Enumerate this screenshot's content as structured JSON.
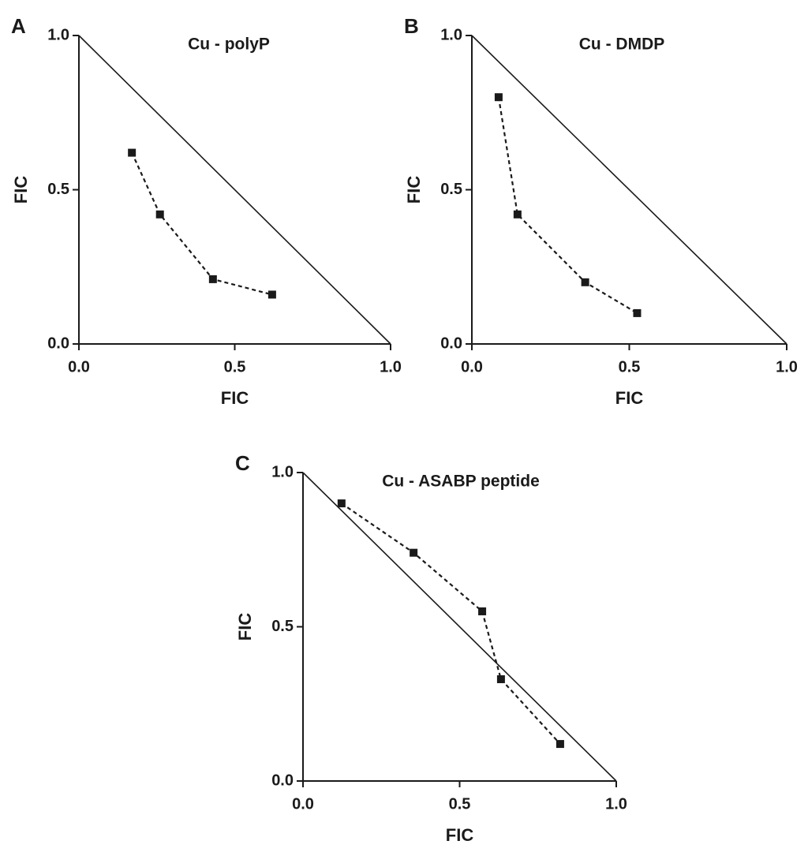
{
  "chart_data": [
    {
      "type": "line",
      "panel": "A",
      "title": "Cu - polyP",
      "x_label": "FIC",
      "y_label": "FIC",
      "x": [
        0.17,
        0.26,
        0.43,
        0.62
      ],
      "values": [
        0.62,
        0.42,
        0.21,
        0.16
      ],
      "color": "#1a1a1a",
      "xlim": [
        0,
        1
      ],
      "ylim": [
        0,
        1
      ],
      "xticks": [
        {
          "value": 0,
          "label": "0.0"
        },
        0.5,
        {
          "value": 1,
          "label": "1.0"
        }
      ],
      "yticks": [
        {
          "value": 0,
          "label": "0.0"
        },
        0.5,
        {
          "value": 1,
          "label": "1.0"
        }
      ]
    },
    {
      "type": "line",
      "panel": "B",
      "title": "Cu - DMDP",
      "x_label": "FIC",
      "y_label": "FIC",
      "x": [
        0.085,
        0.145,
        0.36,
        0.525
      ],
      "values": [
        0.8,
        0.42,
        0.2,
        0.1
      ],
      "color": "#1a1a1a",
      "xlim": [
        0,
        1
      ],
      "ylim": [
        0,
        1
      ],
      "xticks": [
        {
          "value": 0,
          "label": "0.0"
        },
        0.5,
        {
          "value": 1,
          "label": "1.0"
        }
      ],
      "yticks": [
        {
          "value": 0,
          "label": "0.0"
        },
        0.5,
        {
          "value": 1,
          "label": "1.0"
        }
      ]
    },
    {
      "type": "line",
      "panel": "C",
      "title": "Cu - ASABP peptide",
      "x_label": "FIC",
      "y_label": "FIC",
      "x": [
        0.123,
        0.353,
        0.572,
        0.632,
        0.821
      ],
      "values": [
        0.9,
        0.74,
        0.55,
        0.33,
        0.12
      ],
      "color": "#1a1a1a",
      "xlim": [
        0,
        1
      ],
      "ylim": [
        0,
        1
      ],
      "xticks": [
        {
          "value": 0,
          "label": "0.0"
        },
        0.5,
        {
          "value": 1,
          "label": "1.0"
        }
      ],
      "yticks": [
        {
          "value": 0,
          "label": "0.0"
        },
        0.5,
        {
          "value": 1,
          "label": "1.0"
        }
      ]
    }
  ]
}
